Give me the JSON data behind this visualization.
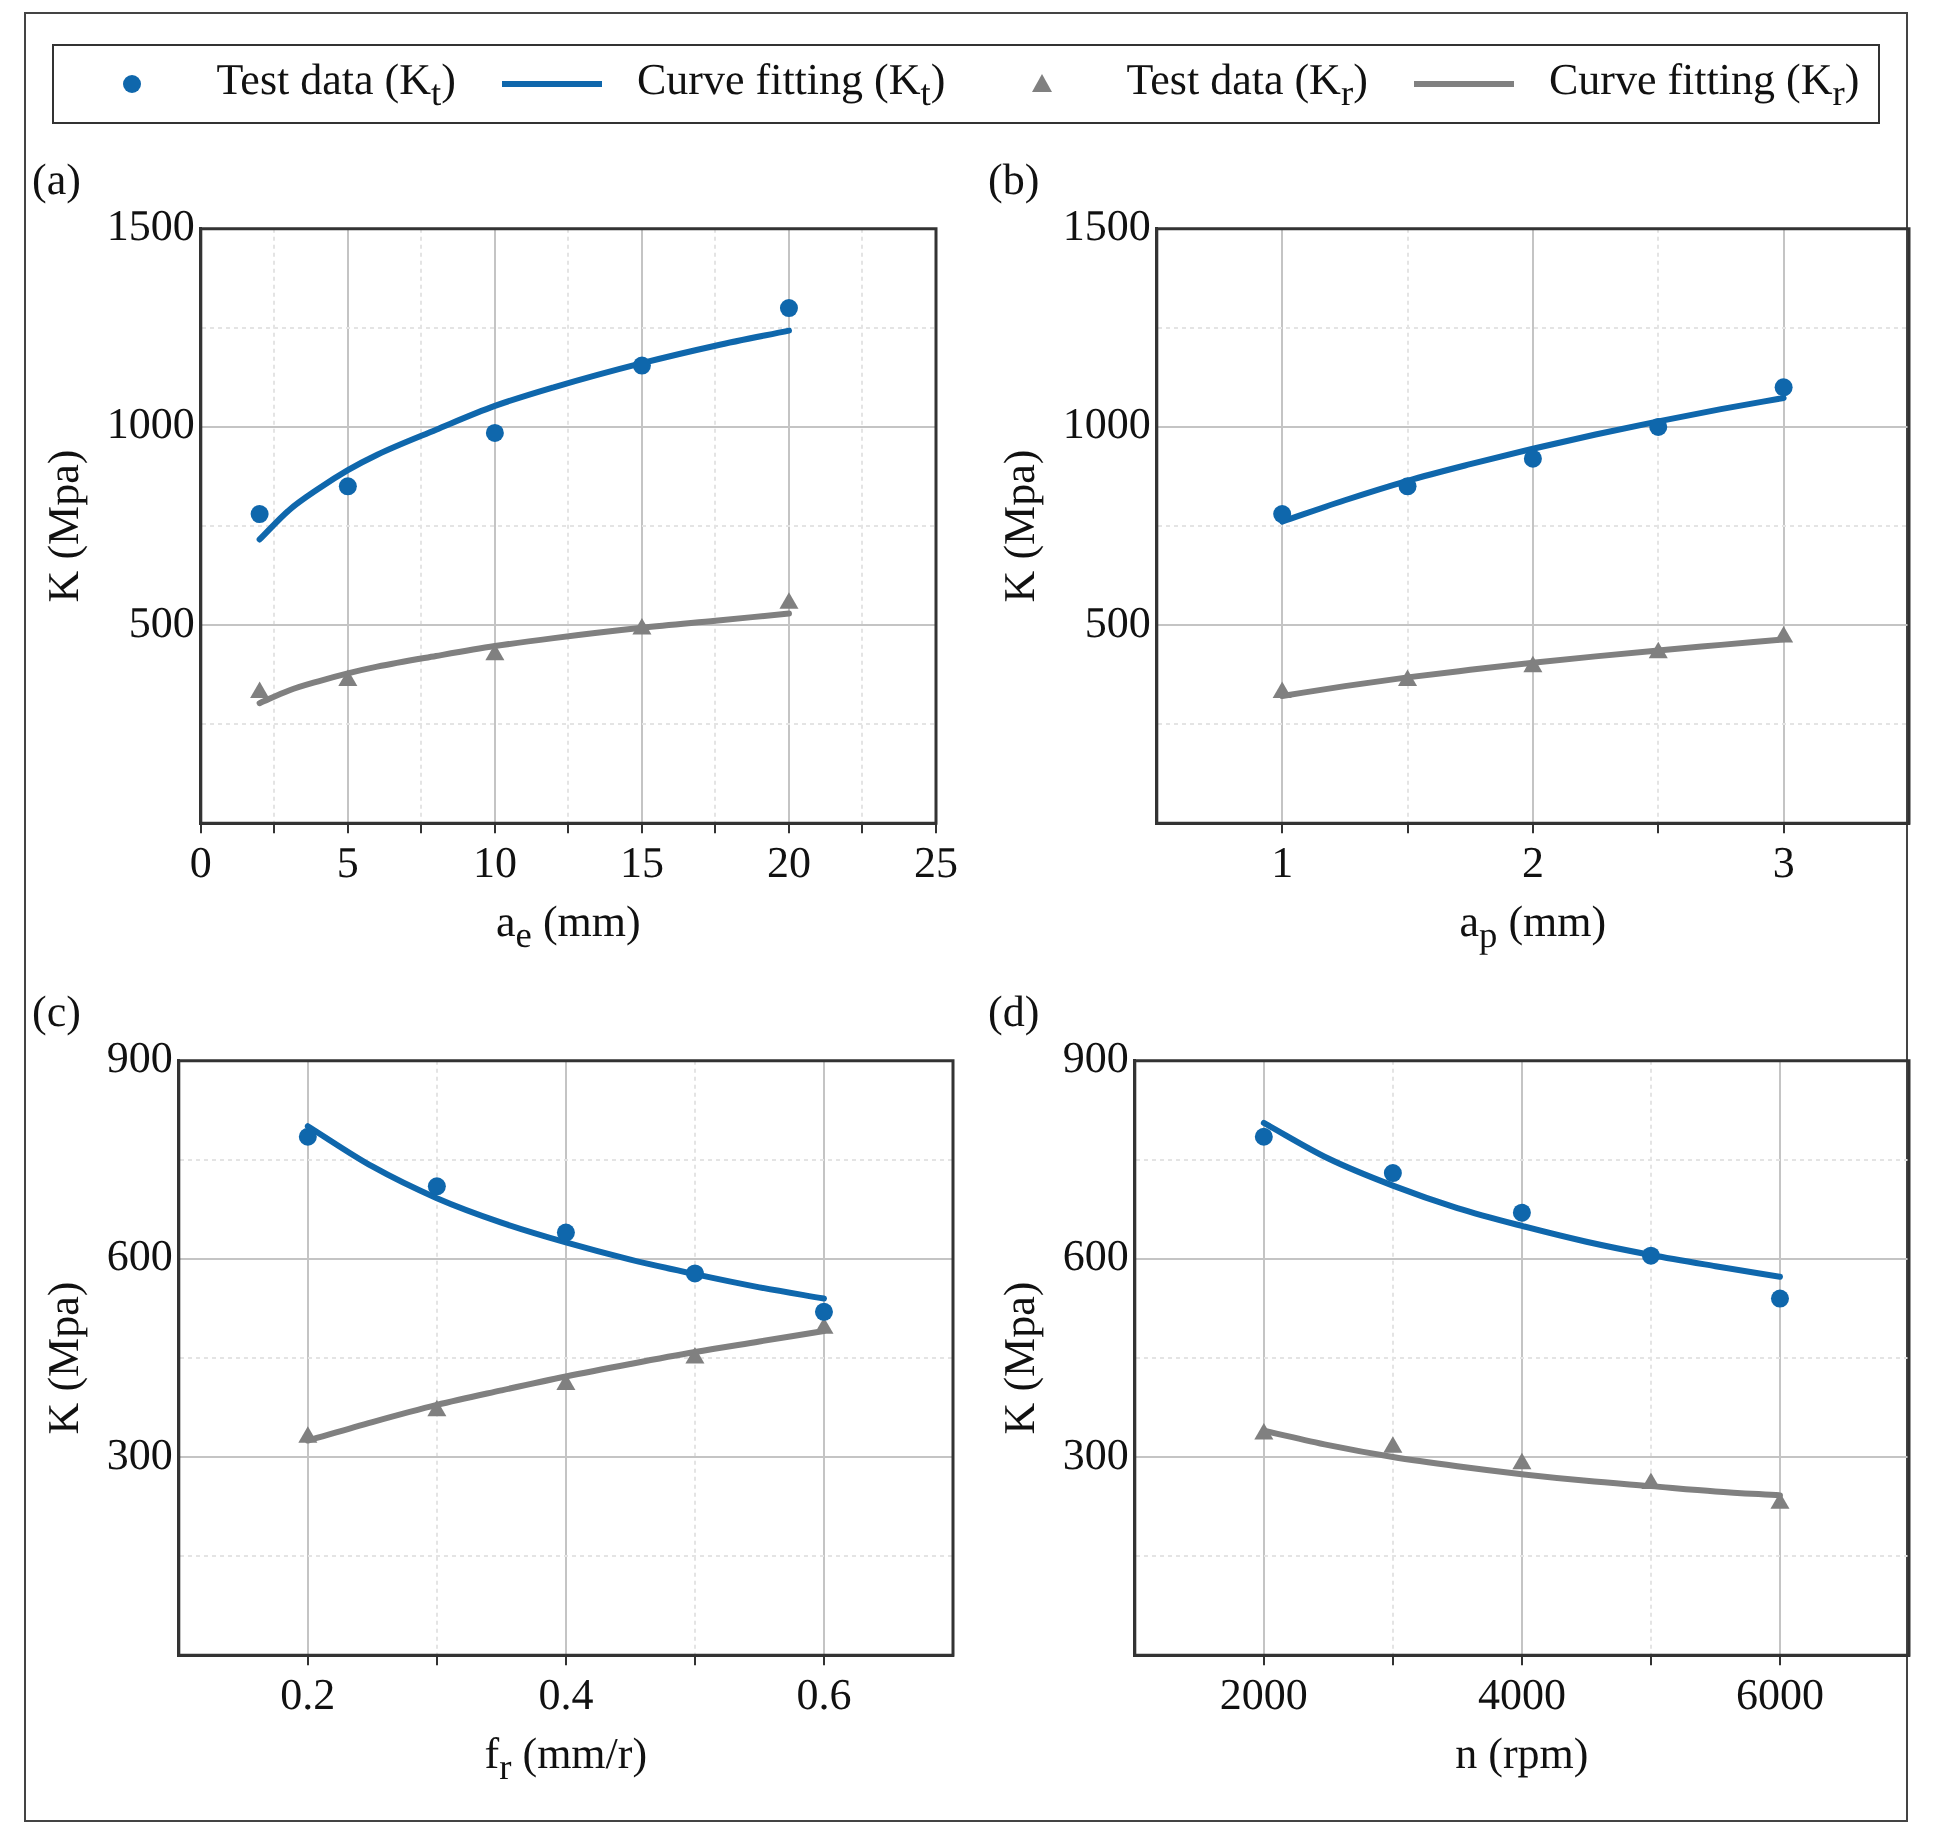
{
  "chart_data": [
    {
      "type": "scatter",
      "title": "(a)",
      "xlabel": "a$_{e}$ (mm)",
      "ylabel": "K (Mpa)",
      "legend": "top",
      "grid": true,
      "xlim": [
        0,
        25
      ],
      "xticks": [
        0,
        {
          "value": 2.5,
          "label": null
        },
        5,
        {
          "value": 7.5,
          "label": null
        },
        10,
        {
          "value": 12.5,
          "label": null
        },
        15,
        {
          "value": 17.5,
          "label": null
        },
        20,
        {
          "value": 22.5,
          "label": null
        },
        25
      ],
      "ylim": [
        0,
        1500
      ],
      "yticks": [
        {
          "value": 250,
          "label": null
        },
        500,
        {
          "value": 750,
          "label": null
        },
        1000,
        {
          "value": 1250,
          "label": null
        },
        1500
      ],
      "series": [
        {
          "name": "Test data (K$_{t}$)",
          "type": "scatter",
          "marker": "circle",
          "color": "#0f67ac",
          "x": [
            2,
            5,
            10,
            15,
            20
          ],
          "values": [
            780,
            850,
            985,
            1155,
            1300
          ]
        },
        {
          "name": "Curve fitting (K$_{t}$)",
          "type": "line",
          "line_style": "solid",
          "color": "#0f67ac",
          "x": [
            2,
            3,
            4,
            5,
            6,
            8,
            10,
            12,
            15,
            17.5,
            20
          ],
          "values": [
            716,
            790,
            844,
            891,
            930,
            993,
            1053,
            1100,
            1161,
            1205,
            1243
          ]
        },
        {
          "name": "Test data (K$_{r}$)",
          "type": "scatter",
          "marker": "triangle",
          "color": "#808080",
          "x": [
            2,
            5,
            10,
            15,
            20
          ],
          "values": [
            330,
            360,
            425,
            490,
            555
          ]
        },
        {
          "name": "Curve fitting (K$_{r}$)",
          "type": "line",
          "line_style": "solid",
          "color": "#808080",
          "x": [
            2,
            3,
            4,
            5,
            6,
            8,
            10,
            12,
            15,
            17.5,
            20
          ],
          "values": [
            303,
            335,
            358,
            378,
            395,
            422,
            447,
            467,
            493,
            511,
            529
          ]
        }
      ]
    },
    {
      "type": "scatter",
      "title": "(b)",
      "xlabel": "a$_{p}$ (mm)",
      "ylabel": "K (Mpa)",
      "grid": true,
      "xlim": [
        0.5,
        3.5
      ],
      "xticks": [
        1,
        {
          "value": 1.5,
          "label": null
        },
        2,
        {
          "value": 2.5,
          "label": null
        },
        3
      ],
      "ylim": [
        0,
        1500
      ],
      "yticks": [
        {
          "value": 250,
          "label": null
        },
        500,
        {
          "value": 750,
          "label": null
        },
        1000,
        {
          "value": 1250,
          "label": null
        },
        1500
      ],
      "series": [
        {
          "type": "scatter",
          "marker": "circle",
          "color": "#0f67ac",
          "x": [
            1,
            1.5,
            2,
            2.5,
            3
          ],
          "values": [
            780,
            850,
            920,
            1000,
            1100
          ]
        },
        {
          "type": "line",
          "line_style": "solid",
          "color": "#0f67ac",
          "x": [
            1,
            1.25,
            1.5,
            1.75,
            2,
            2.25,
            2.5,
            2.75,
            3
          ],
          "values": [
            761,
            815,
            864,
            906,
            945,
            981,
            1014,
            1045,
            1073
          ]
        },
        {
          "type": "scatter",
          "marker": "triangle",
          "color": "#808080",
          "x": [
            1,
            1.5,
            2,
            2.5,
            3
          ],
          "values": [
            330,
            360,
            395,
            430,
            470
          ]
        },
        {
          "type": "line",
          "line_style": "solid",
          "color": "#808080",
          "x": [
            1,
            1.25,
            1.5,
            1.75,
            2,
            2.25,
            2.5,
            2.75,
            3
          ],
          "values": [
            321,
            346,
            368,
            387,
            405,
            421,
            436,
            450,
            464
          ]
        }
      ]
    },
    {
      "type": "scatter",
      "title": "(c)",
      "xlabel": "f$_{r}$ (mm/r)",
      "ylabel": "K (Mpa)",
      "grid": true,
      "xlim": [
        0.1,
        0.7
      ],
      "xticks": [
        0.2,
        {
          "value": 0.3,
          "label": null
        },
        0.4,
        {
          "value": 0.5,
          "label": null
        },
        0.6
      ],
      "ylim": [
        0,
        900
      ],
      "yticks": [
        {
          "value": 150,
          "label": null
        },
        300,
        {
          "value": 450,
          "label": null
        },
        600,
        {
          "value": 750,
          "label": null
        },
        900
      ],
      "series": [
        {
          "type": "scatter",
          "marker": "circle",
          "color": "#0f67ac",
          "x": [
            0.2,
            0.3,
            0.4,
            0.5,
            0.6
          ],
          "values": [
            785,
            710,
            640,
            578,
            520
          ]
        },
        {
          "type": "line",
          "line_style": "solid",
          "color": "#0f67ac",
          "x": [
            0.2,
            0.25,
            0.3,
            0.35,
            0.4,
            0.45,
            0.5,
            0.55,
            0.6
          ],
          "values": [
            801,
            740,
            692,
            655,
            625,
            599,
            577,
            557,
            540
          ]
        },
        {
          "type": "scatter",
          "marker": "triangle",
          "color": "#808080",
          "x": [
            0.2,
            0.3,
            0.4,
            0.5,
            0.6
          ],
          "values": [
            330,
            370,
            410,
            450,
            495
          ]
        },
        {
          "type": "line",
          "line_style": "solid",
          "color": "#808080",
          "x": [
            0.2,
            0.25,
            0.3,
            0.35,
            0.4,
            0.45,
            0.5,
            0.55,
            0.6
          ],
          "values": [
            325,
            353,
            379,
            401,
            422,
            441,
            459,
            475,
            491
          ]
        }
      ]
    },
    {
      "type": "scatter",
      "title": "(d)",
      "xlabel": "n (rpm)",
      "ylabel": "K (Mpa)",
      "grid": true,
      "xlim": [
        1000,
        7000
      ],
      "xticks": [
        2000,
        {
          "value": 3000,
          "label": null
        },
        4000,
        {
          "value": 5000,
          "label": null
        },
        6000
      ],
      "ylim": [
        0,
        900
      ],
      "yticks": [
        {
          "value": 150,
          "label": null
        },
        300,
        {
          "value": 450,
          "label": null
        },
        600,
        {
          "value": 750,
          "label": null
        },
        900
      ],
      "series": [
        {
          "type": "scatter",
          "marker": "circle",
          "color": "#0f67ac",
          "x": [
            2000,
            3000,
            4000,
            5000,
            6000
          ],
          "values": [
            785,
            730,
            670,
            605,
            540
          ]
        },
        {
          "type": "line",
          "line_style": "solid",
          "color": "#0f67ac",
          "x": [
            2000,
            2500,
            3000,
            3500,
            4000,
            4500,
            5000,
            5500,
            6000
          ],
          "values": [
            806,
            752,
            711,
            677,
            650,
            626,
            606,
            589,
            573
          ]
        },
        {
          "type": "scatter",
          "marker": "triangle",
          "color": "#808080",
          "x": [
            2000,
            3000,
            4000,
            5000,
            6000
          ],
          "values": [
            335,
            315,
            290,
            260,
            230
          ]
        },
        {
          "type": "line",
          "line_style": "solid",
          "color": "#808080",
          "x": [
            2000,
            2500,
            3000,
            3500,
            4000,
            4500,
            5000,
            5500,
            6000
          ],
          "values": [
            340,
            318,
            300,
            286,
            274,
            264,
            256,
            248,
            242
          ]
        }
      ]
    }
  ]
}
